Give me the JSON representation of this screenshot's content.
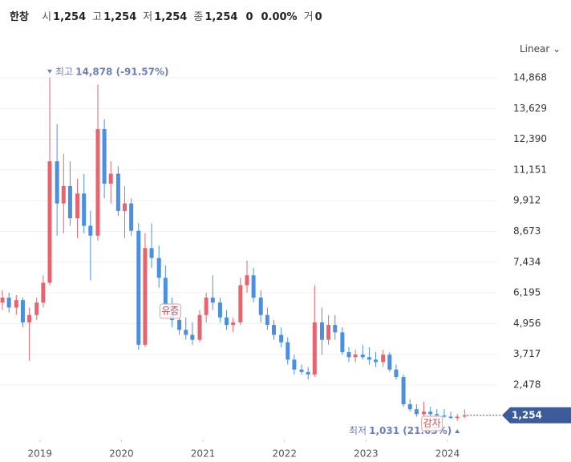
{
  "header": {
    "symbol": "한창",
    "fields": [
      {
        "label": "시",
        "value": "1,254"
      },
      {
        "label": "고",
        "value": "1,254"
      },
      {
        "label": "저",
        "value": "1,254"
      },
      {
        "label": "종",
        "value": "1,254"
      },
      {
        "label": "",
        "value": "0"
      },
      {
        "label": "",
        "value": "0.00%"
      },
      {
        "label": "거",
        "value": "0"
      }
    ],
    "scale": "Linear"
  },
  "chart_data": {
    "type": "candlestick",
    "x": [
      2018.54,
      2018.62,
      2018.71,
      2018.79,
      2018.87,
      2018.96,
      2019.04,
      2019.12,
      2019.21,
      2019.29,
      2019.37,
      2019.46,
      2019.54,
      2019.62,
      2019.71,
      2019.79,
      2019.87,
      2019.96,
      2020.04,
      2020.12,
      2020.21,
      2020.29,
      2020.37,
      2020.46,
      2020.54,
      2020.62,
      2020.71,
      2020.79,
      2020.87,
      2020.96,
      2021.04,
      2021.12,
      2021.21,
      2021.29,
      2021.37,
      2021.46,
      2021.54,
      2021.62,
      2021.71,
      2021.79,
      2021.87,
      2021.96,
      2022.04,
      2022.12,
      2022.21,
      2022.29,
      2022.37,
      2022.46,
      2022.54,
      2022.62,
      2022.71,
      2022.79,
      2022.87,
      2022.96,
      2023.04,
      2023.12,
      2023.21,
      2023.29,
      2023.37,
      2023.46,
      2023.54,
      2023.62,
      2023.71,
      2023.79,
      2023.87,
      2023.96,
      2024.04,
      2024.12,
      2024.21
    ],
    "open": [
      5800,
      6000,
      5600,
      5900,
      5000,
      5300,
      5800,
      6600,
      11500,
      9800,
      10500,
      9200,
      10200,
      8900,
      8500,
      12800,
      10600,
      11000,
      9500,
      9800,
      8700,
      4100,
      8000,
      7600,
      6800,
      5700,
      5100,
      4700,
      4500,
      4300,
      5300,
      6000,
      5800,
      5200,
      4900,
      5000,
      6500,
      6900,
      6000,
      5300,
      4900,
      4500,
      4200,
      3500,
      3100,
      3000,
      2900,
      5000,
      4300,
      4900,
      4600,
      3800,
      3600,
      3700,
      3600,
      3500,
      3400,
      3700,
      3100,
      2800,
      1700,
      1500,
      1300,
      1400,
      1300,
      1250,
      1200,
      1150,
      1200
    ],
    "high": [
      6300,
      6200,
      6100,
      6000,
      5600,
      6000,
      6900,
      14878,
      13000,
      11800,
      11500,
      10800,
      11000,
      9500,
      14600,
      13200,
      11500,
      11300,
      10500,
      10000,
      9000,
      8600,
      9000,
      8100,
      7300,
      6000,
      5500,
      5200,
      5000,
      5500,
      6200,
      6900,
      6000,
      5500,
      5200,
      6800,
      7500,
      7200,
      6300,
      5600,
      5100,
      4800,
      4400,
      3700,
      3300,
      3200,
      6500,
      5600,
      5300,
      5300,
      4800,
      4000,
      3900,
      4100,
      4000,
      3800,
      3900,
      3800,
      3300,
      2900,
      1900,
      1700,
      1800,
      1600,
      1500,
      1500,
      1400,
      1300,
      1500
    ],
    "low": [
      5500,
      5400,
      5300,
      4800,
      3450,
      5100,
      5600,
      6500,
      8500,
      8600,
      8900,
      8400,
      8600,
      6700,
      8300,
      10000,
      9800,
      9300,
      8400,
      8500,
      3900,
      4000,
      7200,
      6400,
      5500,
      4800,
      4500,
      4300,
      4100,
      4200,
      5000,
      5500,
      5000,
      4700,
      4600,
      4900,
      6200,
      5800,
      5000,
      4700,
      4300,
      4000,
      3300,
      2900,
      2900,
      2700,
      2800,
      3700,
      4100,
      4300,
      3700,
      3400,
      3400,
      3500,
      3300,
      3200,
      3200,
      3000,
      2700,
      1600,
      1400,
      1200,
      1200,
      1200,
      1150,
      1150,
      1100,
      1031,
      1150
    ],
    "close": [
      6000,
      5600,
      5900,
      5000,
      5300,
      5800,
      6600,
      11500,
      9800,
      10500,
      9200,
      10200,
      8900,
      8500,
      12800,
      10600,
      11000,
      9500,
      9800,
      8700,
      4100,
      8000,
      7600,
      6800,
      5700,
      5100,
      4700,
      4500,
      4300,
      5300,
      6000,
      5800,
      5200,
      4900,
      5000,
      6500,
      6900,
      6000,
      5300,
      4900,
      4500,
      4200,
      3500,
      3100,
      3000,
      2900,
      5000,
      4300,
      4900,
      4600,
      3800,
      3600,
      3700,
      3600,
      3500,
      3400,
      3700,
      3100,
      2800,
      1700,
      1500,
      1300,
      1400,
      1300,
      1250,
      1200,
      1150,
      1200,
      1254
    ],
    "up_color": "#e8636e",
    "down_color": "#4a8fe0",
    "xlim": [
      2018.51,
      2024.61
    ],
    "xticks": [
      2019,
      2020,
      2021,
      2022,
      2023,
      2024
    ],
    "ylim": [
      277,
      16712
    ],
    "yticks": [
      {
        "value": 2478,
        "label": "2,478"
      },
      {
        "value": 3717,
        "label": "3,717"
      },
      {
        "value": 4956,
        "label": "4,956"
      },
      {
        "value": 6195,
        "label": "6,195"
      },
      {
        "value": 7434,
        "label": "7,434"
      },
      {
        "value": 8673,
        "label": "8,673"
      },
      {
        "value": 9912,
        "label": "9,912"
      },
      {
        "value": 11151,
        "label": "11,151"
      },
      {
        "value": 12390,
        "label": "12,390"
      },
      {
        "value": 13629,
        "label": "13,629"
      },
      {
        "value": 14868,
        "label": "14,868"
      }
    ],
    "grid": true,
    "last_price": {
      "value": 1254,
      "label": "1,254"
    },
    "high_marker": {
      "label": "최고",
      "text": "14,878 (-91.57%)"
    },
    "low_marker": {
      "label": "최저",
      "text": "1,031 (21.63%)"
    },
    "events": [
      {
        "x": 2020.6,
        "label": "유증"
      },
      {
        "x": 2023.81,
        "label": "감자"
      }
    ]
  }
}
